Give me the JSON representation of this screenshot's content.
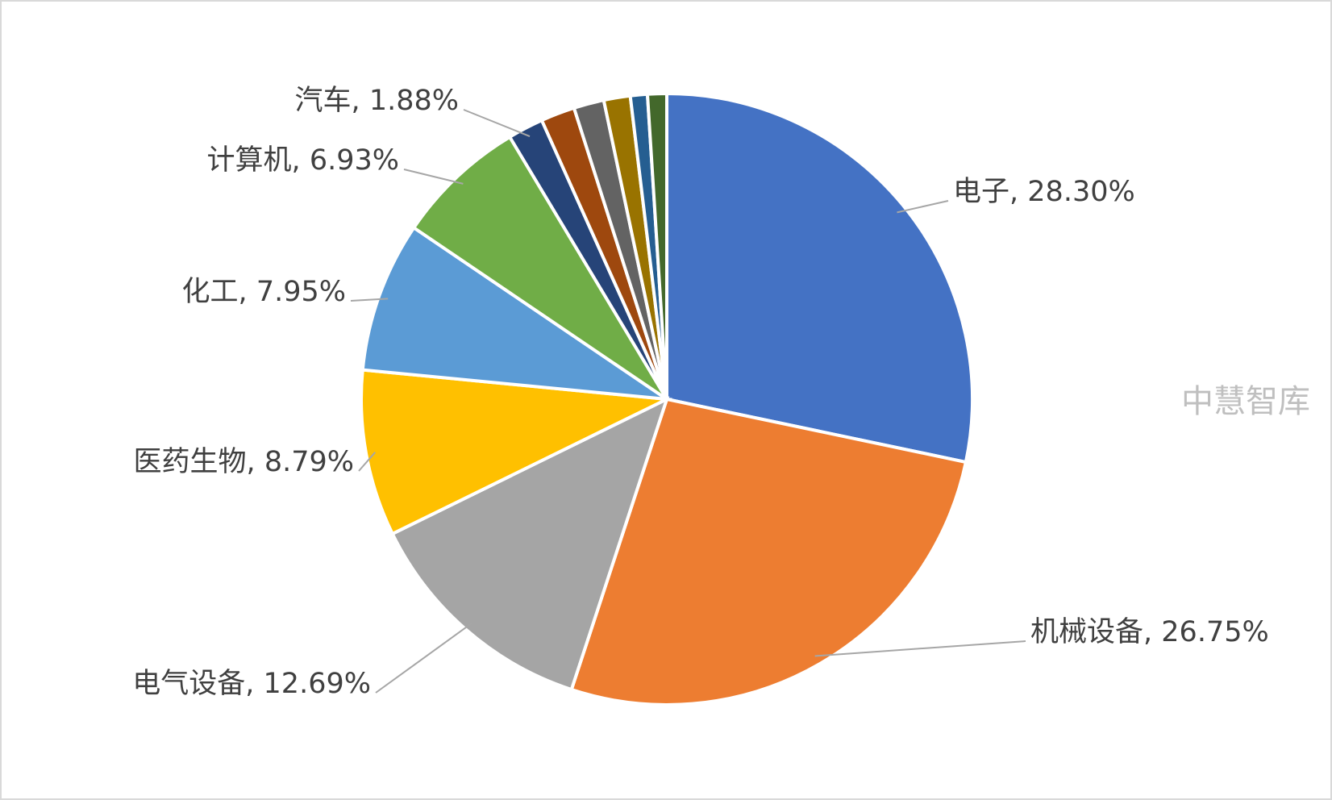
{
  "chart_data": {
    "type": "pie",
    "categories": [
      "电子",
      "机械设备",
      "电气设备",
      "医药生物",
      "化工",
      "计算机",
      "汽车",
      null,
      null,
      null,
      null,
      null
    ],
    "values": [
      28.3,
      26.75,
      12.69,
      8.79,
      7.95,
      6.93,
      1.88,
      1.8,
      1.6,
      1.4,
      0.9,
      1.01
    ],
    "value_labels": [
      "28.30%",
      "26.75%",
      "12.69%",
      "8.79%",
      "7.95%",
      "6.93%",
      "1.88%",
      null,
      null,
      null,
      null,
      null
    ],
    "colors": [
      "#4472c4",
      "#ed7d31",
      "#a5a5a5",
      "#ffc000",
      "#5b9bd5",
      "#70ad47",
      "#264478",
      "#9e480e",
      "#636363",
      "#997300",
      "#255e91",
      "#43682b"
    ],
    "watermark": "中慧智库"
  }
}
